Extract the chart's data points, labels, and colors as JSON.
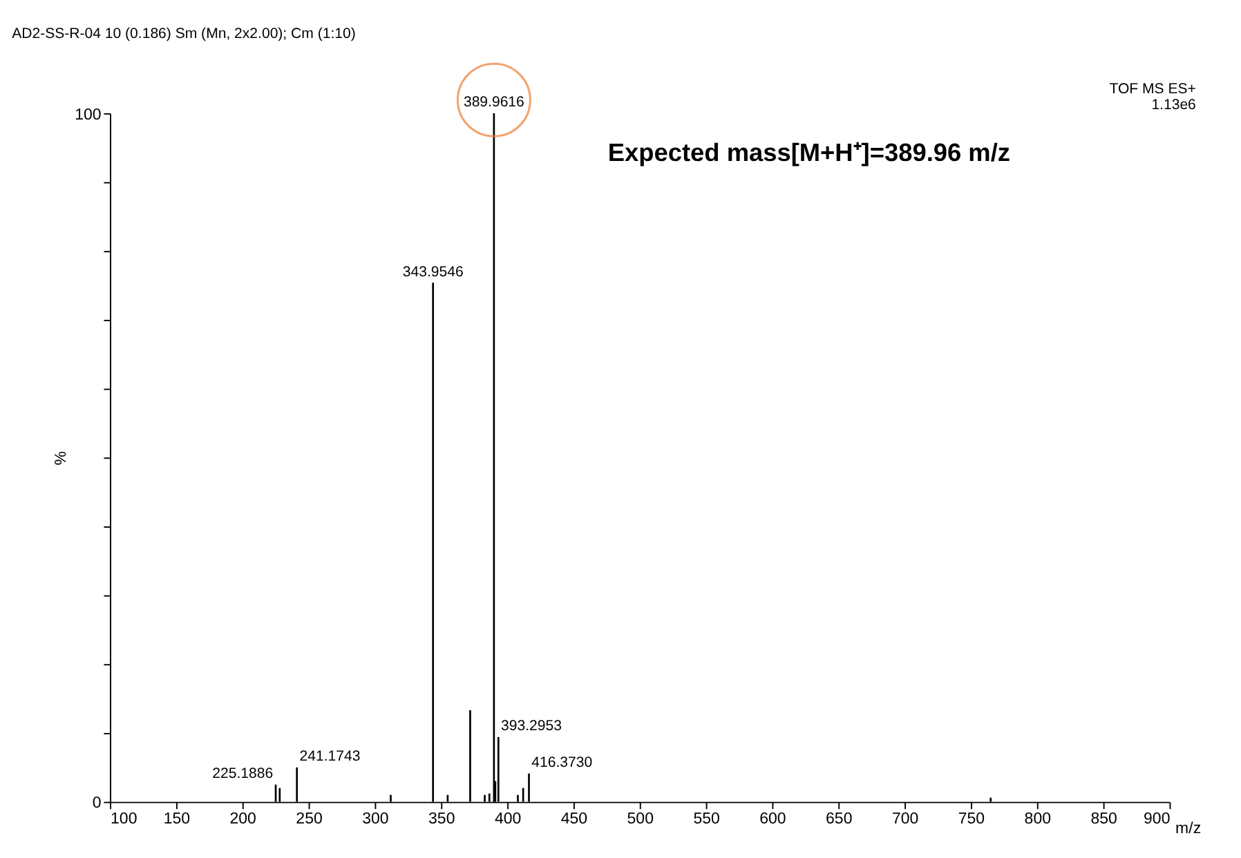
{
  "chart_data": {
    "type": "bar",
    "title": "AD2-SS-R-04  10 (0.186) Sm (Mn, 2x2.00); Cm (1:10)",
    "xlabel": "m/z",
    "ylabel": "%",
    "x": [
      225.1886,
      228.2,
      241.1743,
      312.0,
      343.9546,
      355.0,
      372.0,
      383.0,
      386.5,
      389.9616,
      391.0,
      393.2953,
      408.0,
      412.0,
      416.373,
      765.0
    ],
    "values": [
      2.5,
      2.0,
      5.0,
      1.0,
      75.4,
      1.0,
      13.3,
      1.0,
      1.2,
      100,
      3.0,
      9.4,
      1.0,
      2.0,
      4.1,
      0.6
    ],
    "color": "#000000",
    "xlim": [
      100,
      900
    ],
    "xticks": [
      100,
      150,
      200,
      250,
      300,
      350,
      400,
      450,
      500,
      550,
      600,
      650,
      700,
      750,
      800,
      850,
      900
    ],
    "ylim": [
      0,
      100
    ],
    "yticks": [
      0,
      {
        "value": 10,
        "label": null
      },
      {
        "value": 20,
        "label": null
      },
      {
        "value": 30,
        "label": null
      },
      {
        "value": 40,
        "label": null
      },
      {
        "value": 50,
        "label": null
      },
      {
        "value": 60,
        "label": null
      },
      {
        "value": 70,
        "label": null
      },
      {
        "value": 80,
        "label": null
      },
      {
        "value": 90,
        "label": null
      },
      100
    ],
    "annotations": [
      "TOF MS ES+",
      "1.13e6",
      "Expected mass[M+H⁺]=389.96 m/z",
      {
        "text": "225.1886",
        "x": 225.1886,
        "y": 2.5
      },
      {
        "text": "241.1743",
        "x": 241.1743,
        "y": 5.0
      },
      {
        "text": "343.9546",
        "x": 343.9546,
        "y": 75.4
      },
      {
        "text": "389.9616",
        "x": 389.9616,
        "y": 100
      },
      {
        "text": "393.2953",
        "x": 393.2953,
        "y": 9.4
      },
      {
        "text": "416.3730",
        "x": 416.373,
        "y": 4.1
      }
    ],
    "grid": false
  }
}
